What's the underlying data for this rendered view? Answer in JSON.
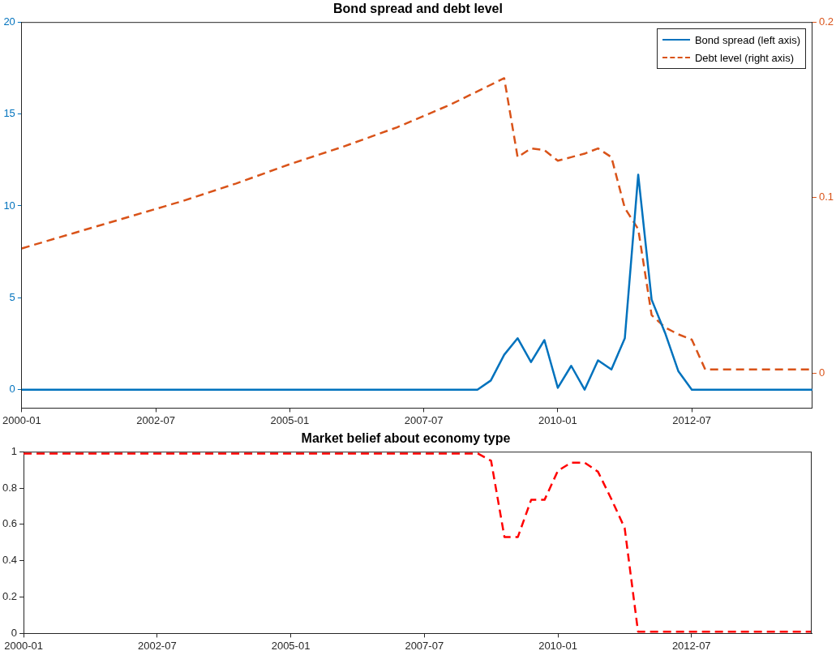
{
  "chart_data": [
    {
      "type": "line",
      "title": "Bond spread and debt level",
      "legend": "top right",
      "grid": false,
      "x": [
        "2000-01",
        "2000-04",
        "2000-07",
        "2000-10",
        "2001-01",
        "2001-04",
        "2001-07",
        "2001-10",
        "2002-01",
        "2002-04",
        "2002-07",
        "2002-10",
        "2003-01",
        "2003-04",
        "2003-07",
        "2003-10",
        "2004-01",
        "2004-04",
        "2004-07",
        "2004-10",
        "2005-01",
        "2005-04",
        "2005-07",
        "2005-10",
        "2006-01",
        "2006-04",
        "2006-07",
        "2006-10",
        "2007-01",
        "2007-04",
        "2007-07",
        "2007-10",
        "2008-01",
        "2008-04",
        "2008-07",
        "2008-10",
        "2009-01",
        "2009-04",
        "2009-07",
        "2009-10",
        "2010-01",
        "2010-04",
        "2010-07",
        "2010-10",
        "2011-01",
        "2011-04",
        "2011-07",
        "2011-10",
        "2012-01",
        "2012-04",
        "2012-07",
        "2012-10",
        "2013-01",
        "2013-04",
        "2013-07",
        "2013-10",
        "2014-01",
        "2014-04",
        "2014-07",
        "2014-10"
      ],
      "xlim": [
        "2000-01",
        "2014-10"
      ],
      "xticks": [
        "2000-01",
        "2002-07",
        "2005-01",
        "2007-07",
        "2010-01",
        "2012-07"
      ],
      "ylim": [
        -1,
        20
      ],
      "yticks": [
        0,
        5,
        10,
        15,
        20
      ],
      "y2lim": [
        -0.02,
        0.2
      ],
      "y2ticks": [
        0,
        0.1,
        0.2
      ],
      "series": [
        {
          "name": "Bond spread (left axis)",
          "color": "#0072bd",
          "line_style": "solid",
          "values": [
            0,
            0,
            0,
            0,
            0,
            0,
            0,
            0,
            0,
            0,
            0,
            0,
            0,
            0,
            0,
            0,
            0,
            0,
            0,
            0,
            0,
            0,
            0,
            0,
            0,
            0,
            0,
            0,
            0,
            0,
            0,
            0,
            0,
            0,
            0,
            0.5,
            1.9,
            2.8,
            1.5,
            2.7,
            0.1,
            1.3,
            0,
            1.6,
            1.1,
            2.8,
            11.7,
            4.9,
            3.1,
            1,
            0,
            0,
            0,
            0,
            0,
            0,
            0,
            0,
            0,
            0
          ]
        },
        {
          "name": "Debt level (right axis)",
          "color": "#d95319",
          "line_style": "dashed",
          "axis": "y2",
          "x": [
            "2000-01",
            "2001-01",
            "2002-01",
            "2003-01",
            "2004-01",
            "2005-01",
            "2006-01",
            "2007-01",
            "2008-01",
            "2009-01",
            "2009-04",
            "2009-07",
            "2009-10",
            "2010-01",
            "2010-04",
            "2010-07",
            "2010-10",
            "2011-01",
            "2011-04",
            "2011-07",
            "2011-10",
            "2012-01",
            "2012-04",
            "2012-07",
            "2012-10",
            "2014-10"
          ],
          "values": [
            0.071,
            0.08,
            0.089,
            0.098,
            0.108,
            0.119,
            0.129,
            0.14,
            0.153,
            0.168,
            0.123,
            0.128,
            0.127,
            0.121,
            0.123,
            0.125,
            0.128,
            0.123,
            0.094,
            0.082,
            0.033,
            0.026,
            0.022,
            0.019,
            0.002,
            0.002
          ]
        }
      ]
    },
    {
      "type": "line",
      "title": "Market belief about economy type",
      "grid": false,
      "xlim": [
        "2000-01",
        "2014-10"
      ],
      "xticks": [
        "2000-01",
        "2002-07",
        "2005-01",
        "2007-07",
        "2010-01",
        "2012-07"
      ],
      "ylim": [
        0,
        1
      ],
      "yticks": [
        0,
        0.2,
        0.4,
        0.6,
        0.8,
        1
      ],
      "series": [
        {
          "color": "#ff0000",
          "line_style": "dashed",
          "x": [
            "2000-01",
            "2008-07",
            "2008-10",
            "2009-01",
            "2009-04",
            "2009-07",
            "2009-10",
            "2010-01",
            "2010-04",
            "2010-07",
            "2010-10",
            "2011-01",
            "2011-04",
            "2011-07",
            "2014-10"
          ],
          "values": [
            0.99,
            0.99,
            0.95,
            0.53,
            0.53,
            0.735,
            0.735,
            0.895,
            0.94,
            0.94,
            0.89,
            0.74,
            0.58,
            0.01,
            0.01
          ]
        }
      ]
    }
  ]
}
